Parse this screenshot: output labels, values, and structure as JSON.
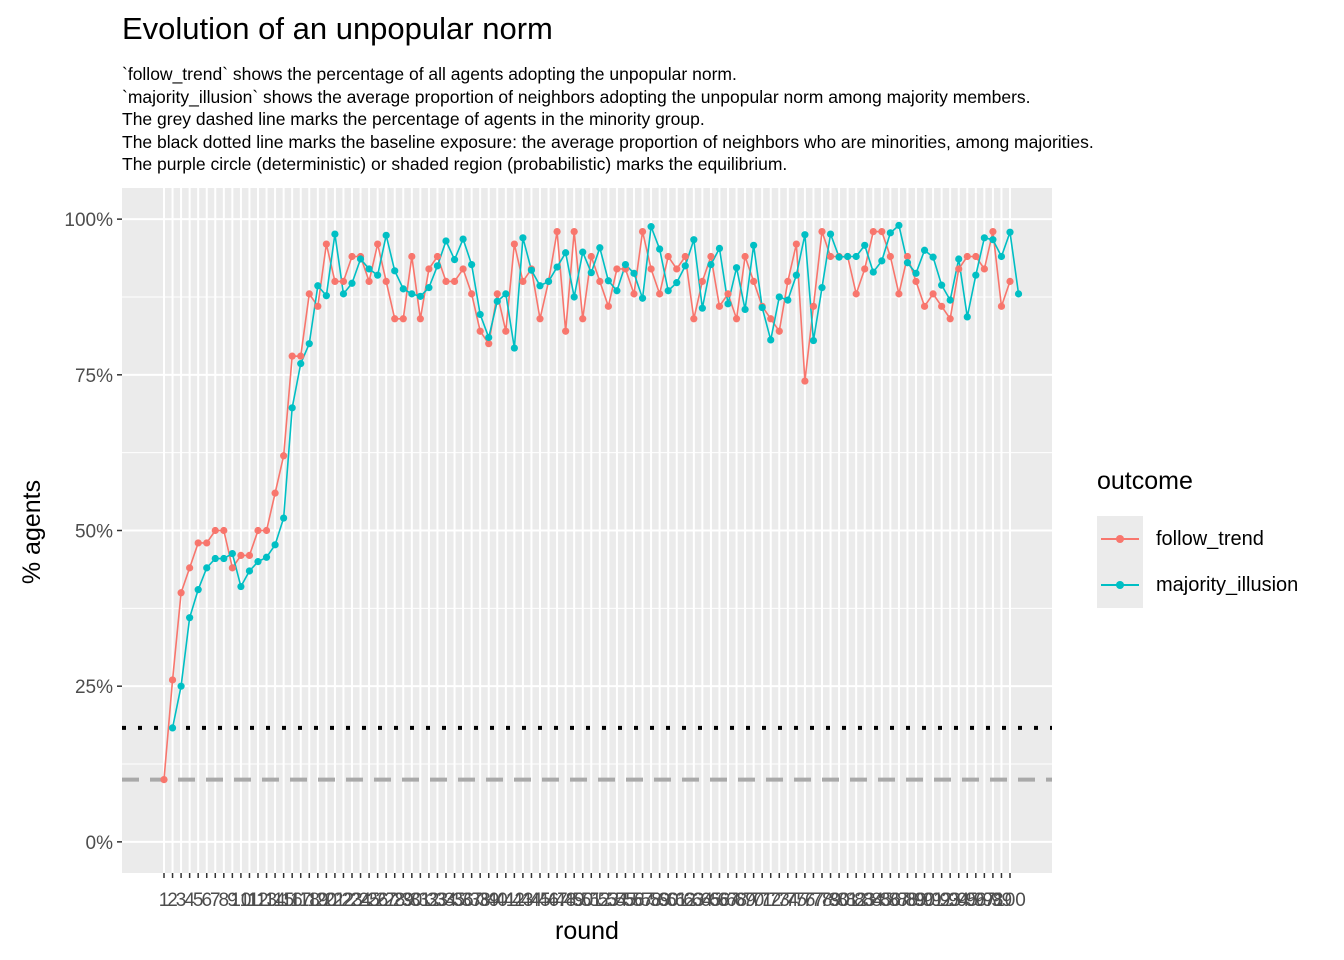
{
  "title": "Evolution of an unpopular norm",
  "subtitle_lines": [
    "`follow_trend` shows the percentage of all agents adopting the unpopular norm.",
    "`majority_illusion` shows the average proportion of neighbors adopting the unpopular norm among majority members.",
    "The grey dashed line marks the percentage of agents in the minority group.",
    "The black dotted line marks the baseline exposure: the average proportion of neighbors who are minorities, among majorities.",
    "The purple circle (deterministic) or shaded region (probabilistic) marks the equilibrium."
  ],
  "legend": {
    "title": "outcome",
    "items": [
      {
        "label": "follow_trend",
        "color": "#F8766D"
      },
      {
        "label": "majority_illusion",
        "color": "#00BFC4"
      }
    ]
  },
  "chart_data": {
    "type": "line",
    "title": "Evolution of an unpopular norm",
    "xlabel": "round",
    "ylabel": "% agents",
    "x_range": [
      1,
      100
    ],
    "ylim": [
      -0.05,
      1.05
    ],
    "y_ticks": [
      0,
      0.25,
      0.5,
      0.75,
      1.0
    ],
    "y_tick_labels": [
      "0%",
      "25%",
      "50%",
      "75%",
      "100%"
    ],
    "x_tick_labels": [
      "1",
      "2",
      "3",
      "4",
      "5",
      "6",
      "7",
      "8",
      "9",
      "10",
      "11",
      "12",
      "13",
      "14",
      "15",
      "16",
      "17",
      "18",
      "19",
      "20",
      "21",
      "22",
      "23",
      "24",
      "25",
      "26",
      "27",
      "28",
      "29",
      "30",
      "31",
      "32",
      "33",
      "34",
      "35",
      "36",
      "37",
      "38",
      "39",
      "40",
      "41",
      "42",
      "43",
      "44",
      "45",
      "46",
      "47",
      "48",
      "49",
      "50",
      "51",
      "52",
      "53",
      "54",
      "55",
      "56",
      "57",
      "58",
      "59",
      "60",
      "61",
      "62",
      "63",
      "64",
      "65",
      "66",
      "67",
      "68",
      "69",
      "70",
      "71",
      "72",
      "73",
      "74",
      "75",
      "76",
      "77",
      "78",
      "79",
      "80",
      "81",
      "82",
      "83",
      "84",
      "85",
      "86",
      "87",
      "88",
      "89",
      "90",
      "91",
      "92",
      "93",
      "94",
      "95",
      "96",
      "97",
      "98",
      "99",
      "100"
    ],
    "reference_lines": [
      {
        "name": "minority-share",
        "style": "dashed",
        "color": "#A9A9A9",
        "y": 0.1
      },
      {
        "name": "baseline-exposure",
        "style": "dotted",
        "color": "#000000",
        "y": 0.183
      }
    ],
    "series": [
      {
        "name": "follow_trend",
        "color": "#F8766D",
        "start": 1,
        "values": [
          0.1,
          0.26,
          0.4,
          0.44,
          0.48,
          0.48,
          0.5,
          0.5,
          0.44,
          0.46,
          0.46,
          0.5,
          0.5,
          0.56,
          0.62,
          0.78,
          0.78,
          0.88,
          0.86,
          0.96,
          0.9,
          0.9,
          0.94,
          0.94,
          0.9,
          0.96,
          0.9,
          0.84,
          0.84,
          0.94,
          0.84,
          0.92,
          0.94,
          0.9,
          0.9,
          0.92,
          0.88,
          0.82,
          0.8,
          0.88,
          0.82,
          0.96,
          0.9,
          0.92,
          0.84,
          0.9,
          0.98,
          0.82,
          0.98,
          0.84,
          0.94,
          0.9,
          0.86,
          0.92,
          0.92,
          0.88,
          0.98,
          0.92,
          0.88,
          0.94,
          0.92,
          0.94,
          0.84,
          0.9,
          0.94,
          0.86,
          0.88,
          0.84,
          0.94,
          0.9,
          0.86,
          0.84,
          0.82,
          0.9,
          0.96,
          0.74,
          0.86,
          0.98,
          0.94,
          0.94,
          0.94,
          0.88,
          0.92,
          0.98,
          0.98,
          0.94,
          0.88,
          0.94,
          0.9,
          0.86,
          0.88,
          0.86,
          0.84,
          0.92,
          0.94,
          0.94,
          0.92,
          0.98,
          0.86,
          0.9
        ]
      },
      {
        "name": "majority_illusion",
        "color": "#00BFC4",
        "start": 2,
        "values": [
          0.183,
          0.25,
          0.36,
          0.405,
          0.44,
          0.455,
          0.455,
          0.463,
          0.41,
          0.435,
          0.45,
          0.457,
          0.477,
          0.52,
          0.697,
          0.768,
          0.8,
          0.893,
          0.877,
          0.976,
          0.88,
          0.897,
          0.936,
          0.92,
          0.91,
          0.974,
          0.917,
          0.888,
          0.88,
          0.876,
          0.89,
          0.925,
          0.965,
          0.935,
          0.968,
          0.927,
          0.847,
          0.81,
          0.868,
          0.88,
          0.793,
          0.97,
          0.918,
          0.893,
          0.9,
          0.923,
          0.946,
          0.875,
          0.947,
          0.914,
          0.954,
          0.901,
          0.885,
          0.927,
          0.913,
          0.873,
          0.988,
          0.952,
          0.885,
          0.898,
          0.925,
          0.967,
          0.857,
          0.927,
          0.953,
          0.864,
          0.922,
          0.855,
          0.958,
          0.858,
          0.806,
          0.875,
          0.87,
          0.91,
          0.975,
          0.805,
          0.89,
          0.976,
          0.939,
          0.94,
          0.94,
          0.958,
          0.915,
          0.933,
          0.978,
          0.99,
          0.93,
          0.913,
          0.95,
          0.939,
          0.894,
          0.87,
          0.936,
          0.843,
          0.91,
          0.97,
          0.967,
          0.94,
          0.979,
          0.88
        ]
      }
    ]
  }
}
